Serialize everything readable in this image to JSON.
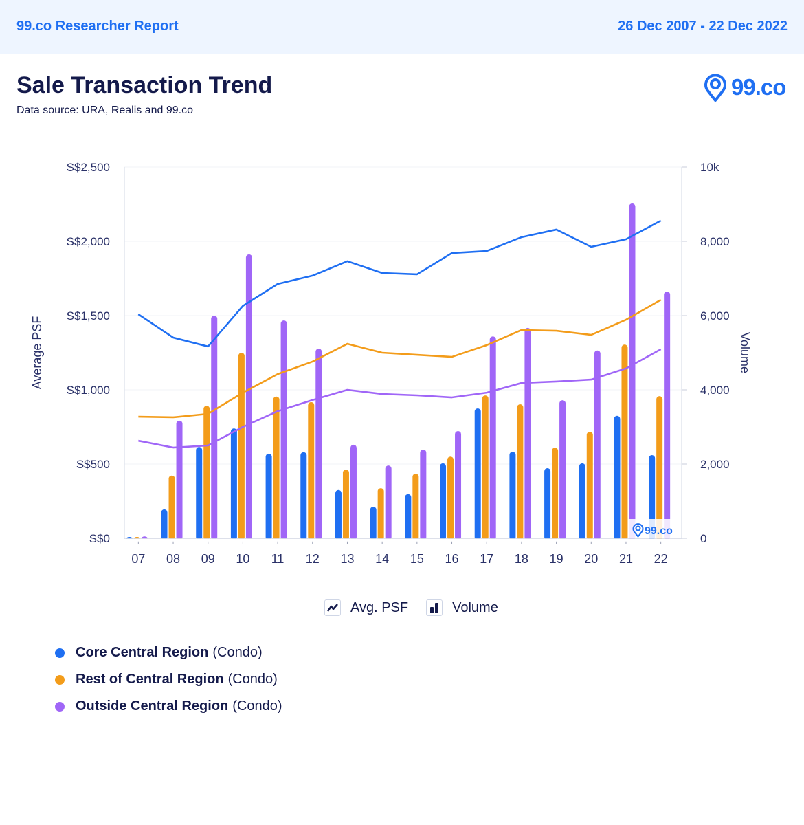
{
  "header": {
    "report_title": "99.co Researcher Report",
    "date_range": "26 Dec 2007 - 22 Dec 2022"
  },
  "title": "Sale Transaction Trend",
  "subtitle": "Data source: URA, Realis and 99.co",
  "logo": {
    "text": "99.co",
    "icon": "location-pin-icon"
  },
  "watermark": {
    "text": "99.co",
    "icon": "location-pin-icon"
  },
  "chart_legend": [
    {
      "label": "Avg. PSF",
      "icon": "line-chart-icon"
    },
    {
      "label": "Volume",
      "icon": "bar-chart-icon"
    }
  ],
  "series_legend": [
    {
      "name": "Core Central Region",
      "suffix": "(Condo)",
      "color": "#1f6ff2"
    },
    {
      "name": "Rest of Central Region",
      "suffix": "(Condo)",
      "color": "#f39c1a"
    },
    {
      "name": "Outside Central Region",
      "suffix": "(Condo)",
      "color": "#a066f7"
    }
  ],
  "chart_data": {
    "type": "bar+line",
    "title": "Sale Transaction Trend",
    "xlabel": "",
    "ylabel": "Average PSF",
    "y2label": "Volume",
    "categories": [
      "07",
      "08",
      "09",
      "10",
      "11",
      "12",
      "13",
      "14",
      "15",
      "16",
      "17",
      "18",
      "19",
      "20",
      "21",
      "22"
    ],
    "ylim": [
      0,
      2500
    ],
    "y2lim": [
      0,
      10000
    ],
    "yticks": [
      "S$0",
      "S$500",
      "S$1,000",
      "S$1,500",
      "S$2,000",
      "S$2,500"
    ],
    "y2ticks": [
      "0",
      "2,000",
      "4,000",
      "6,000",
      "8,000",
      "10k"
    ],
    "grid": true,
    "legend_position": "bottom",
    "line_series": [
      {
        "name": "Core Central Region (Condo)",
        "color": "#1f6ff2",
        "axis": "Average PSF",
        "values": [
          1509,
          1352,
          1292,
          1565,
          1713,
          1769,
          1866,
          1787,
          1778,
          1921,
          1935,
          2028,
          2079,
          1963,
          2014,
          2139
        ]
      },
      {
        "name": "Rest of Central Region (Condo)",
        "color": "#f39c1a",
        "axis": "Average PSF",
        "values": [
          819,
          815,
          838,
          981,
          1106,
          1190,
          1310,
          1250,
          1236,
          1222,
          1301,
          1403,
          1398,
          1370,
          1472,
          1606
        ]
      },
      {
        "name": "Outside Central Region (Condo)",
        "color": "#a066f7",
        "axis": "Average PSF",
        "values": [
          657,
          611,
          625,
          750,
          856,
          931,
          1000,
          972,
          963,
          949,
          981,
          1046,
          1056,
          1069,
          1144,
          1273
        ]
      }
    ],
    "bar_series": [
      {
        "name": "Core Central Region (Condo)",
        "color": "#1f6ff2",
        "axis": "Volume",
        "values": [
          20,
          780,
          2460,
          2960,
          2280,
          2320,
          1300,
          850,
          1190,
          2020,
          3500,
          2330,
          1890,
          2020,
          3300,
          2240
        ]
      },
      {
        "name": "Rest of Central Region (Condo)",
        "color": "#f39c1a",
        "axis": "Volume",
        "values": [
          30,
          1690,
          3570,
          5000,
          3820,
          3670,
          1850,
          1350,
          1740,
          2200,
          3850,
          3610,
          2440,
          2870,
          5220,
          3830
        ]
      },
      {
        "name": "Outside Central Region (Condo)",
        "color": "#a066f7",
        "axis": "Volume",
        "values": [
          50,
          3170,
          6000,
          7650,
          5870,
          5110,
          2520,
          1960,
          2390,
          2890,
          5440,
          5670,
          3720,
          5060,
          9020,
          6650
        ]
      }
    ]
  }
}
